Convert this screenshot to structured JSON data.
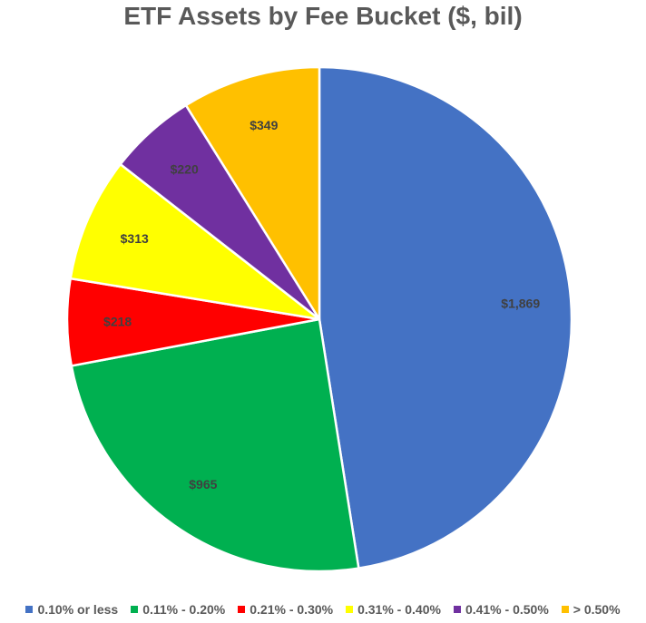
{
  "chart_data": {
    "type": "pie",
    "title": "ETF Assets by Fee Bucket ($, bil)",
    "legend_position": "bottom",
    "categories": [
      "0.10% or less",
      "0.11% - 0.20%",
      "0.21% - 0.30%",
      "0.31% - 0.40%",
      "0.41% - 0.50%",
      "> 0.50%"
    ],
    "values": [
      1869,
      965,
      218,
      313,
      220,
      349
    ],
    "value_labels": [
      "$1,869",
      "$965",
      "$218",
      "$313",
      "$220",
      "$349"
    ],
    "colors": [
      "#4472C4",
      "#00B050",
      "#FF0000",
      "#FFFF00",
      "#7030A0",
      "#FFC000"
    ]
  }
}
